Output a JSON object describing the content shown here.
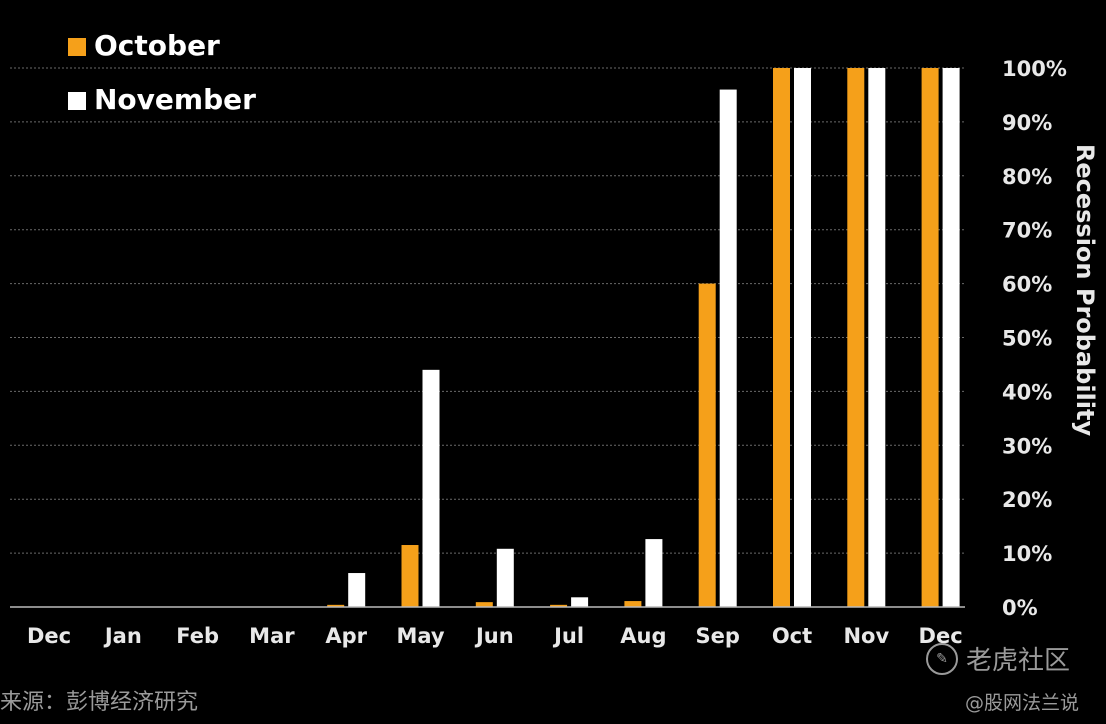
{
  "chart_data": {
    "type": "bar",
    "categories": [
      "Dec",
      "Jan",
      "Feb",
      "Mar",
      "Apr",
      "May",
      "Jun",
      "Jul",
      "Aug",
      "Sep",
      "Oct",
      "Nov",
      "Dec"
    ],
    "series": [
      {
        "name": "October",
        "color": "#f5a01a",
        "values": [
          0,
          0,
          0,
          0,
          0.4,
          11.5,
          0.9,
          0.4,
          1.1,
          60,
          100,
          100,
          100
        ]
      },
      {
        "name": "November",
        "color": "#ffffff",
        "values": [
          0,
          0,
          0,
          0,
          6.3,
          44,
          10.8,
          1.8,
          12.6,
          96,
          100,
          100,
          100
        ]
      }
    ],
    "ylabel": "Recession Probability",
    "ylim": [
      0,
      100
    ],
    "yticks": [
      "0%",
      "10%",
      "20%",
      "30%",
      "40%",
      "50%",
      "60%",
      "70%",
      "80%",
      "90%",
      "100%"
    ],
    "grid": true,
    "legend_position": "top-left",
    "y_axis_side": "right"
  },
  "source": "来源：彭博经济研究",
  "watermark": {
    "logo_text": "老虎社区",
    "handle": "@股网法兰说"
  }
}
